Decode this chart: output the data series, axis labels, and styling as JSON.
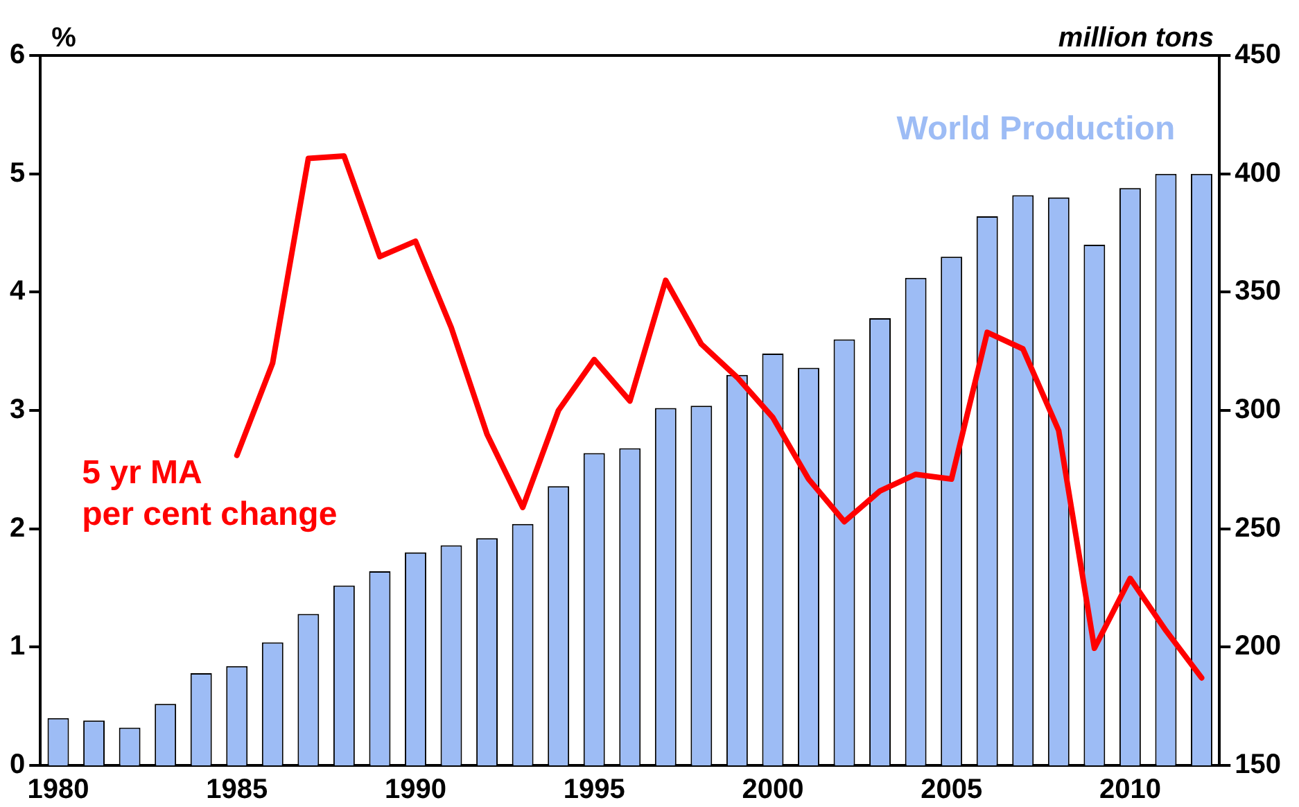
{
  "chart_data": {
    "type": "bar",
    "ylabel": "%",
    "y2label": "million tons",
    "categories": [
      "1980",
      null,
      null,
      null,
      null,
      "1985",
      null,
      null,
      null,
      null,
      "1990",
      null,
      null,
      null,
      null,
      "1995",
      null,
      null,
      null,
      null,
      "2000",
      null,
      null,
      null,
      null,
      "2005",
      null,
      null,
      null,
      null,
      "2010",
      null,
      null
    ],
    "series": [
      {
        "name": "World Production",
        "axis": "y2",
        "color": "#9dbcf5",
        "values": [
          170,
          169,
          166,
          176,
          189,
          192,
          202,
          214,
          226,
          232,
          240,
          243,
          246,
          252,
          268,
          282,
          284,
          301,
          302,
          315,
          324,
          318,
          330,
          339,
          356,
          365,
          382,
          391,
          390,
          370,
          394,
          400,
          400
        ]
      },
      {
        "name": "5 yr MA\nper cent change",
        "type": "line",
        "axis": "y",
        "color": "#ff0000",
        "values": [
          null,
          null,
          null,
          null,
          null,
          2.62,
          3.4,
          5.13,
          5.15,
          4.3,
          4.43,
          3.7,
          2.8,
          2.18,
          3.0,
          3.43,
          3.08,
          4.1,
          3.56,
          3.28,
          2.94,
          2.42,
          2.06,
          2.32,
          2.46,
          2.42,
          3.66,
          3.52,
          2.83,
          0.99,
          1.58,
          1.14,
          0.74
        ]
      }
    ],
    "ylim": [
      0,
      6
    ],
    "yticks": [
      0,
      1,
      2,
      3,
      4,
      5,
      6
    ],
    "y2lim": [
      150,
      450
    ],
    "y2ticks": [
      150,
      200,
      250,
      300,
      350,
      400,
      450
    ],
    "grid": false,
    "legend": false,
    "marker": "none",
    "line_style": "solid"
  }
}
